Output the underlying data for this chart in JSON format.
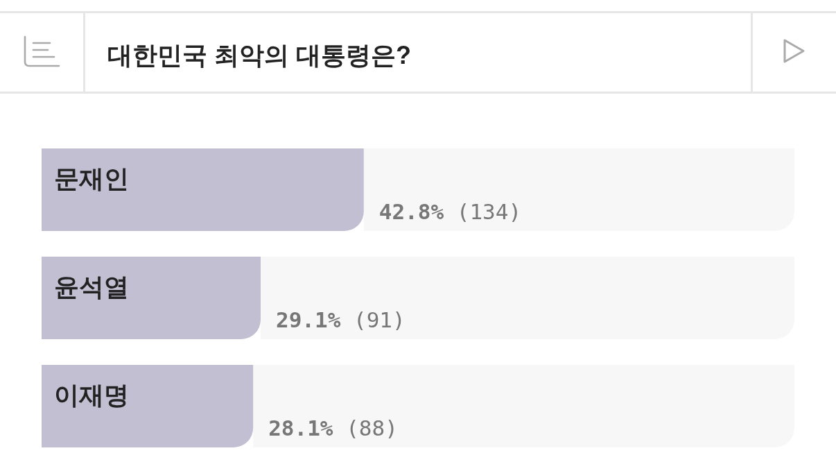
{
  "chart_data": {
    "type": "bar",
    "orientation": "horizontal",
    "title": "대한민국 최악의 대통령은?",
    "categories": [
      "문재인",
      "윤석열",
      "이재명"
    ],
    "values": [
      42.8,
      29.1,
      28.1
    ],
    "value_labels": [
      "42.8% (134)",
      "29.1% (91)",
      "28.1% (88)"
    ],
    "color": "#c3bfd3",
    "xlim": [
      0,
      100
    ],
    "tick_labels": "y"
  }
}
